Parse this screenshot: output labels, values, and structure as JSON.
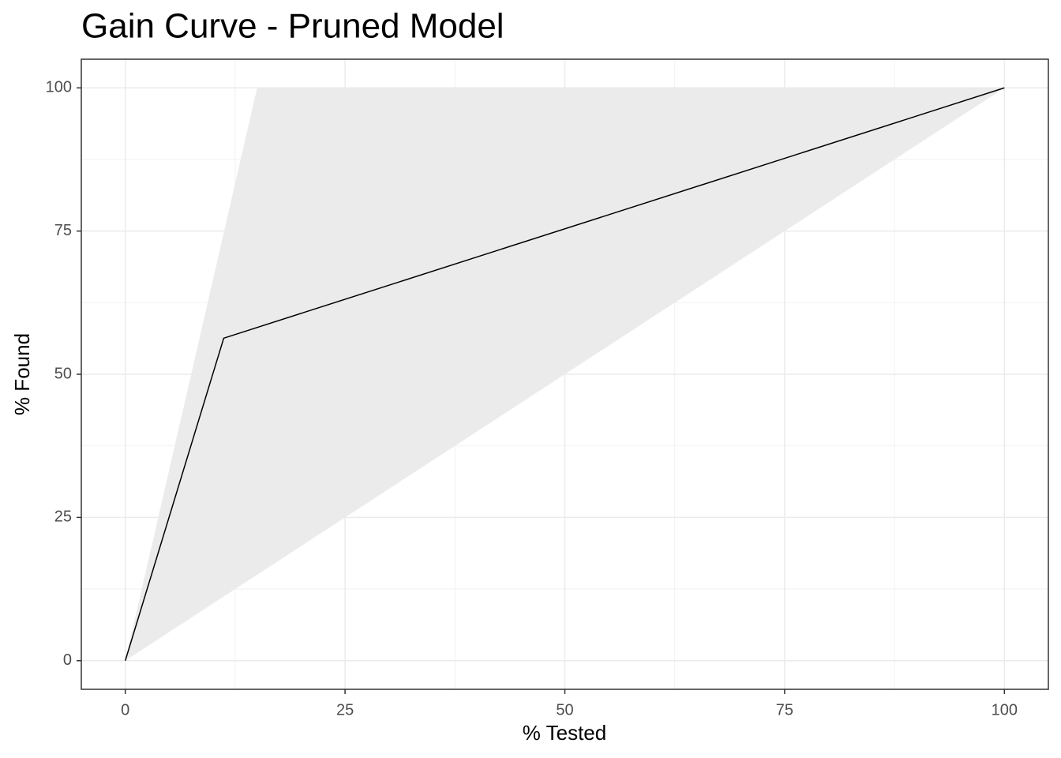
{
  "chart_data": {
    "type": "line",
    "title": "Gain Curve - Pruned Model",
    "x_label": "% Tested",
    "y_label": "% Found",
    "xlim": [
      -5,
      105
    ],
    "ylim": [
      -5,
      105
    ],
    "xticks": [
      0,
      25,
      50,
      75,
      100
    ],
    "yticks": [
      0,
      25,
      50,
      75,
      100
    ],
    "x_minor": [
      12.5,
      37.5,
      62.5,
      87.5
    ],
    "y_minor": [
      12.5,
      37.5,
      62.5,
      87.5
    ],
    "grid": true,
    "band": {
      "x": [
        0,
        15,
        100
      ],
      "ymin": [
        0,
        15,
        100
      ],
      "ymax": [
        0,
        100,
        100
      ],
      "color": "#ebebeb"
    },
    "series": [
      {
        "x": [
          0,
          11.2,
          100
        ],
        "values": [
          0,
          56.3,
          100
        ],
        "color": "#000000"
      }
    ]
  }
}
